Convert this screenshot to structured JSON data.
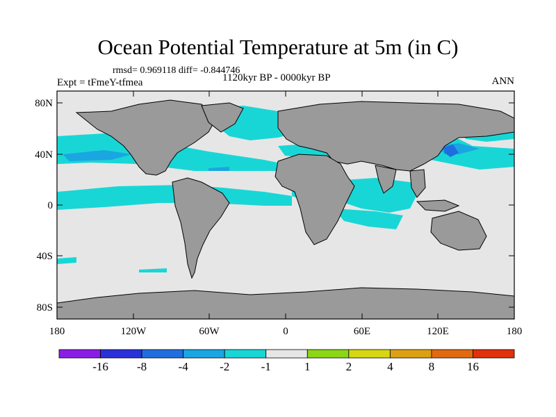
{
  "title": "Ocean Potential Temperature at 5m (in C)",
  "stats": "rmsd= 0.969118 diff= -0.844746",
  "experiment": "Expt = tFmeY-tfmea",
  "period": "1120kyr BP - 0000kyr BP",
  "season": "ANN",
  "lat_ticks": [
    "80N",
    "40N",
    "0",
    "40S",
    "80S"
  ],
  "lon_ticks": [
    "180",
    "120W",
    "60W",
    "0",
    "60E",
    "120E",
    "180"
  ],
  "colorbar": {
    "labels": [
      "-16",
      "-8",
      "-4",
      "-2",
      "-1",
      "1",
      "2",
      "4",
      "8",
      "16"
    ],
    "colors": [
      "#8a1ee6",
      "#2b31d8",
      "#1f6ee0",
      "#1aa6e0",
      "#19d6d6",
      "#e6e6e6",
      "#8ad617",
      "#d6d615",
      "#dca015",
      "#e06a10",
      "#e0300c"
    ]
  },
  "colors": {
    "land": "#9a9a9a",
    "ocean_neutral": "#e6e6e6",
    "anomaly_cool": "#19d6d6",
    "anomaly_cooler": "#1aa6e0",
    "anomaly_coolest": "#1f6ee0"
  }
}
